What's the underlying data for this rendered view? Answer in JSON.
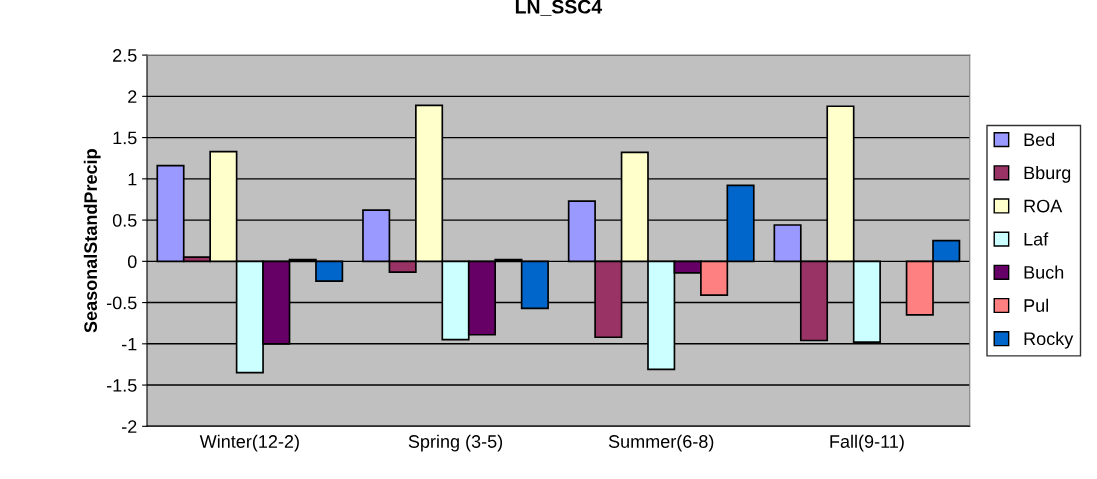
{
  "chart_data": {
    "type": "bar",
    "title": "LN_SSC4",
    "ylabel": "SeasonalStandPrecip",
    "categories": [
      "Winter(12-2)",
      "Spring (3-5)",
      "Summer(6-8)",
      "Fall(9-11)"
    ],
    "series": [
      {
        "name": "Bed",
        "color": "#9999ff",
        "values": [
          1.16,
          0.62,
          0.73,
          0.44
        ]
      },
      {
        "name": "Bburg",
        "color": "#993366",
        "values": [
          0.05,
          -0.13,
          -0.92,
          -0.96
        ]
      },
      {
        "name": "ROA",
        "color": "#ffffcc",
        "values": [
          1.33,
          1.89,
          1.32,
          1.88
        ]
      },
      {
        "name": "Laf",
        "color": "#ccffff",
        "values": [
          -1.35,
          -0.95,
          -1.31,
          -0.98
        ]
      },
      {
        "name": "Buch",
        "color": "#660066",
        "values": [
          -1.0,
          -0.89,
          -0.14,
          null
        ]
      },
      {
        "name": "Pul",
        "color": "#ff8080",
        "values": [
          0.02,
          0.02,
          -0.41,
          -0.65
        ]
      },
      {
        "name": "Rocky",
        "color": "#0066cc",
        "values": [
          -0.24,
          -0.57,
          0.92,
          0.25
        ]
      }
    ],
    "ylim": [
      -2,
      2.5
    ],
    "yticks": [
      -2,
      -1.5,
      -1,
      -0.5,
      0,
      0.5,
      1,
      1.5,
      2,
      2.5
    ],
    "grid": "y",
    "legend": "right"
  }
}
